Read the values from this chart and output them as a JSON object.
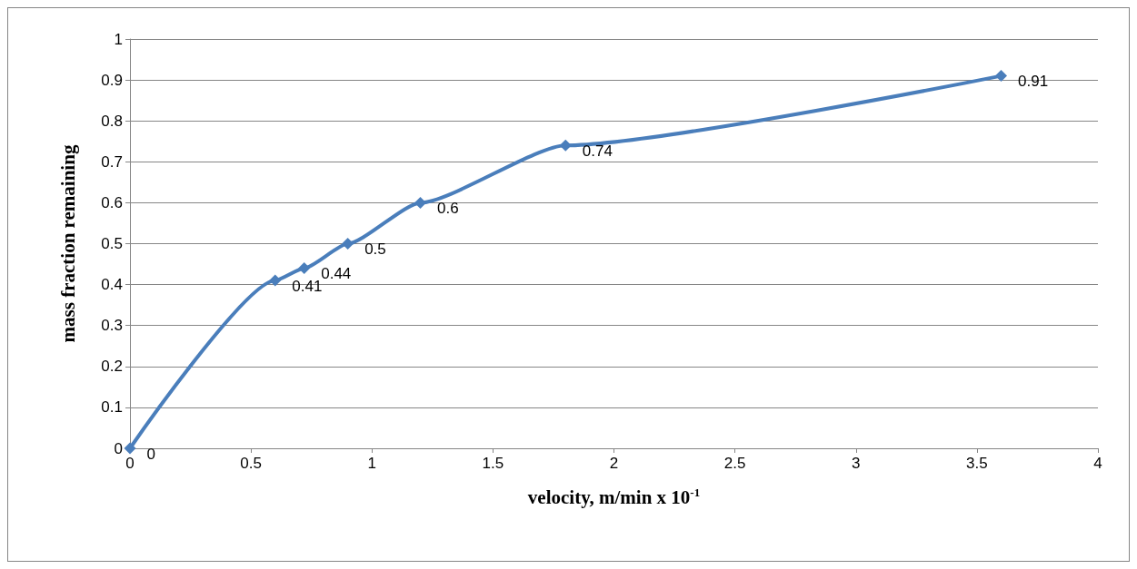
{
  "chart_data": {
    "type": "line",
    "xlabel": "velocity, m/min x 10$^{-1}$",
    "ylabel": "mass fraction remaining",
    "x": [
      0,
      0.6,
      0.72,
      0.9,
      1.2,
      1.8,
      3.6
    ],
    "series": [
      {
        "color": "#4a7ebb",
        "values": [
          0,
          0.41,
          0.44,
          0.5,
          0.6,
          0.74,
          0.91
        ]
      }
    ],
    "xlim": [
      0,
      4
    ],
    "xticks": [
      0,
      0.5,
      1,
      1.5,
      2,
      2.5,
      3,
      3.5,
      4
    ],
    "ylim": [
      0,
      1
    ],
    "yticks": [
      0,
      0.1,
      0.2,
      0.3,
      0.4,
      0.5,
      0.6,
      0.7,
      0.8,
      0.9,
      1
    ],
    "grid": "y",
    "marker": "diamond",
    "line_style": "solid",
    "data_labels": true
  }
}
